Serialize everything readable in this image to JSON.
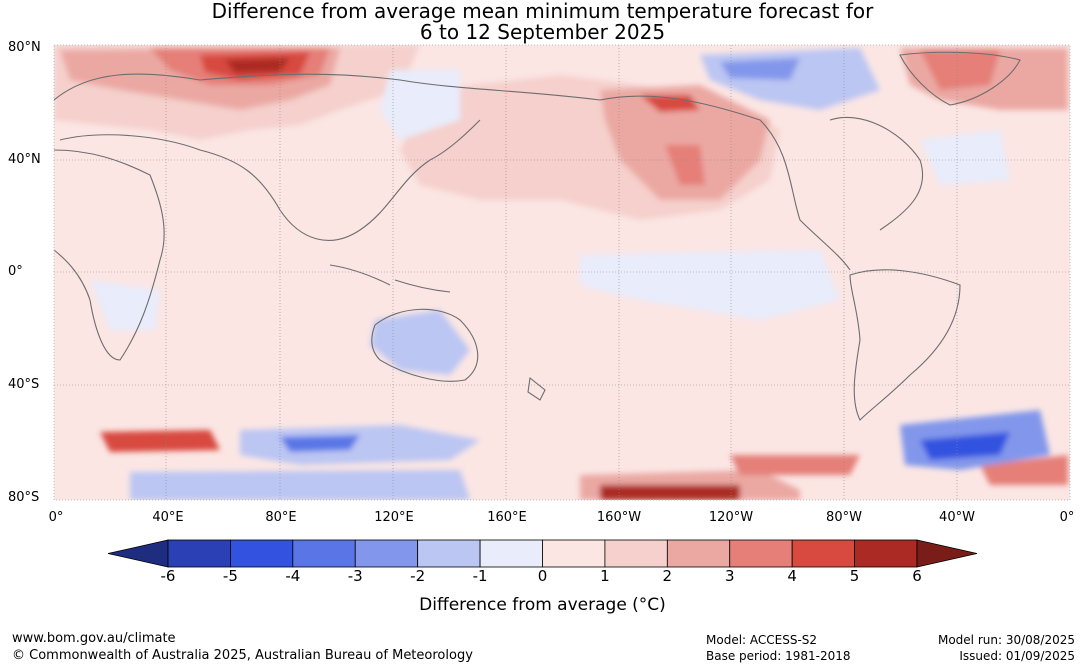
{
  "title": {
    "line1": "Difference from average mean minimum temperature forecast for",
    "line2": "6 to 12 September 2025"
  },
  "map": {
    "lat_labels": [
      "80°N",
      "40°N",
      "0°",
      "40°S",
      "80°S"
    ],
    "lon_labels": [
      "0°",
      "40°E",
      "80°E",
      "120°E",
      "160°E",
      "160°W",
      "120°W",
      "80°W",
      "40°W",
      "0°"
    ]
  },
  "colorbar": {
    "ticks": [
      "-6",
      "-5",
      "-4",
      "-3",
      "-2",
      "-1",
      "0",
      "1",
      "2",
      "3",
      "4",
      "5",
      "6"
    ],
    "colors": [
      "#1f2d80",
      "#2a40b4",
      "#3352e0",
      "#5a76e6",
      "#8297eb",
      "#bcc6f3",
      "#e8ecfb",
      "#fbe6e4",
      "#f5d0cc",
      "#eba8a3",
      "#e57f78",
      "#d84a40",
      "#ab2a23",
      "#7a1c18"
    ],
    "label": "Difference from average (°C)"
  },
  "footer": {
    "website": "www.bom.gov.au/climate",
    "copyright": "© Commonwealth of Australia 2025, Australian Bureau of Meteorology",
    "model": "Model: ACCESS-S2",
    "base_period": "Base period: 1981-2018",
    "model_run": "Model run: 30/08/2025",
    "issued": "Issued: 01/09/2025"
  }
}
